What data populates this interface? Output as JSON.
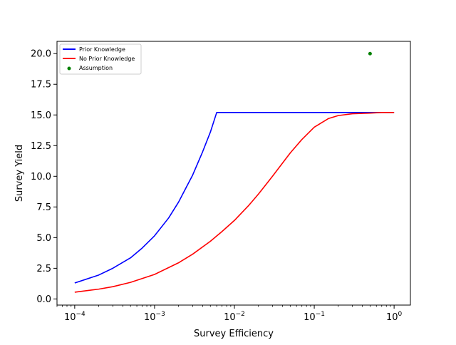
{
  "chart_data": {
    "type": "line",
    "title": "",
    "xlabel": "Survey Efficiency",
    "ylabel": "Survey Yield",
    "xscale": "log",
    "xlim": [
      6e-05,
      1.6
    ],
    "ylim": [
      -0.5,
      21.0
    ],
    "grid": false,
    "legend_position": "top-left",
    "xticks": [
      {
        "value": 0.0001,
        "base": "10",
        "exp": "−4"
      },
      {
        "value": 0.001,
        "base": "10",
        "exp": "−3"
      },
      {
        "value": 0.01,
        "base": "10",
        "exp": "−2"
      },
      {
        "value": 0.1,
        "base": "10",
        "exp": "−1"
      },
      {
        "value": 1,
        "base": "10",
        "exp": "0"
      }
    ],
    "yticks": [
      {
        "value": 0.0,
        "label": "0.0"
      },
      {
        "value": 2.5,
        "label": "2.5"
      },
      {
        "value": 5.0,
        "label": "5.0"
      },
      {
        "value": 7.5,
        "label": "7.5"
      },
      {
        "value": 10.0,
        "label": "10.0"
      },
      {
        "value": 12.5,
        "label": "12.5"
      },
      {
        "value": 15.0,
        "label": "15.0"
      },
      {
        "value": 17.5,
        "label": "17.5"
      },
      {
        "value": 20.0,
        "label": "20.0"
      }
    ],
    "series": [
      {
        "name": "Prior Knowledge",
        "kind": "line",
        "color": "#0000ff",
        "x": [
          0.0001,
          0.0002,
          0.0003,
          0.0005,
          0.0007,
          0.001,
          0.0015,
          0.002,
          0.003,
          0.004,
          0.005,
          0.006,
          0.01,
          0.1,
          1.0
        ],
        "y": [
          1.3,
          1.95,
          2.5,
          3.35,
          4.15,
          5.15,
          6.6,
          7.9,
          10.1,
          12.0,
          13.6,
          15.2,
          15.2,
          15.2,
          15.2
        ]
      },
      {
        "name": "No Prior Knowledge",
        "kind": "line",
        "color": "#ff0000",
        "x": [
          0.0001,
          0.0002,
          0.0003,
          0.0005,
          0.001,
          0.002,
          0.003,
          0.005,
          0.007,
          0.01,
          0.015,
          0.02,
          0.03,
          0.05,
          0.07,
          0.1,
          0.15,
          0.2,
          0.3,
          0.5,
          0.7,
          1.0
        ],
        "y": [
          0.55,
          0.8,
          1.0,
          1.35,
          2.0,
          2.95,
          3.65,
          4.7,
          5.5,
          6.4,
          7.6,
          8.55,
          10.0,
          11.9,
          13.0,
          14.0,
          14.7,
          14.95,
          15.1,
          15.15,
          15.2,
          15.2
        ]
      },
      {
        "name": "Assumption",
        "kind": "scatter",
        "color": "#008000",
        "x": [
          0.5
        ],
        "y": [
          20.0
        ]
      }
    ]
  }
}
